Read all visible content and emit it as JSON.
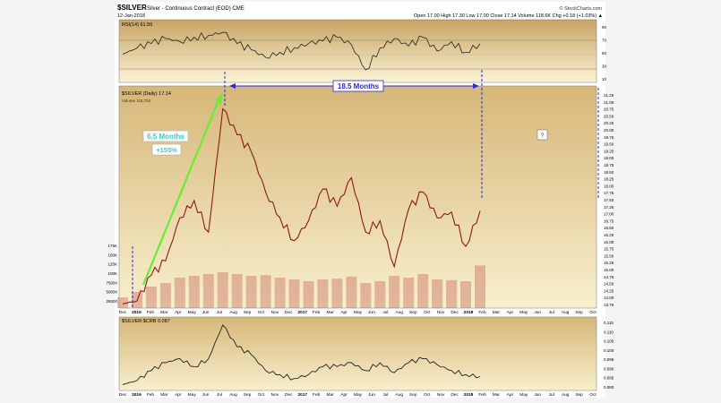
{
  "header": {
    "symbol": "$SILVER",
    "description": "Silver - Continuous Contract (EOD) CME",
    "date": "12-Jan-2018",
    "stats": "Open 17.00  High 17.30  Low 17.00  Close 17.14  Volume 118.6K  Chg +0.18 (+1.03%) ▲",
    "credit": "© StockCharts.com"
  },
  "rsi_panel": {
    "label": "RSI(14) 61.59",
    "y_ticks": [
      "90",
      "70",
      "50",
      "30",
      "10"
    ]
  },
  "price_panel": {
    "label": "$SILVER (Daily) 17.14",
    "volume_label": "Volume 118,752",
    "y_ticks": [
      "21.25",
      "21.00",
      "20.75",
      "20.50",
      "20.25",
      "20.00",
      "19.75",
      "19.50",
      "19.25",
      "19.00",
      "18.75",
      "18.50",
      "18.25",
      "18.00",
      "17.75",
      "17.50",
      "17.25",
      "17.00",
      "16.75",
      "16.50",
      "16.25",
      "16.00",
      "15.75",
      "15.50",
      "15.25",
      "15.00",
      "14.75",
      "14.50",
      "14.25",
      "14.00",
      "13.75"
    ],
    "volume_ticks": [
      "175K",
      "150K",
      "125K",
      "100K",
      "75000",
      "50000",
      "25000"
    ]
  },
  "ratio_panel": {
    "label": "$SILVER:$CRB 0.087",
    "y_ticks": [
      "0.115",
      "0.110",
      "0.105",
      "0.100",
      "0.095",
      "0.090",
      "0.085",
      "0.080"
    ]
  },
  "x_axis": {
    "labels": [
      "Dec",
      "2016",
      "Feb",
      "Mar",
      "Apr",
      "May",
      "Jun",
      "Jul",
      "Aug",
      "Sep",
      "Oct",
      "Nov",
      "Dec",
      "2017",
      "Feb",
      "Mar",
      "Apr",
      "May",
      "Jun",
      "Jul",
      "Aug",
      "Sep",
      "Oct",
      "Nov",
      "Dec",
      "2018",
      "Feb",
      "Mar",
      "Apr",
      "May",
      "Jun",
      "Jul",
      "Aug",
      "Sep",
      "Oct"
    ]
  },
  "annotations": {
    "months_18": "18.5 Months",
    "months_6": "6.5 Months",
    "percent": "+155%",
    "question": "?"
  },
  "colors": {
    "bg_top": "#c8a463",
    "bg_bottom": "#faf3d6",
    "candle": "#8b1a1a",
    "green_arrow": "#66ee33",
    "blue_annot": "#2a2ad0",
    "label_teal": "#33cccc"
  },
  "chart_data": [
    {
      "type": "line",
      "panel": "rsi",
      "ylim": [
        0,
        100
      ],
      "x": [
        "Dec",
        "2016",
        "Feb",
        "Mar",
        "Apr",
        "May",
        "Jun",
        "Jul",
        "Aug",
        "Sep",
        "Oct",
        "Nov",
        "Dec",
        "2017",
        "Feb",
        "Mar",
        "Apr",
        "May",
        "Jun",
        "Jul",
        "Aug",
        "Sep",
        "Oct",
        "Nov",
        "Dec",
        "2018"
      ],
      "series": [
        {
          "values": [
            45,
            55,
            62,
            70,
            65,
            72,
            75,
            80,
            62,
            52,
            40,
            48,
            55,
            62,
            66,
            72,
            60,
            20,
            55,
            70,
            58,
            72,
            50,
            65,
            48,
            61.59
          ]
        }
      ]
    },
    {
      "type": "line",
      "panel": "price",
      "ylim": [
        13.75,
        21.25
      ],
      "x": [
        "Dec",
        "2016",
        "Feb",
        "Mar",
        "Apr",
        "May",
        "Jun",
        "Jul",
        "Aug",
        "Sep",
        "Oct",
        "Nov",
        "Dec",
        "2017",
        "Feb",
        "Mar",
        "Apr",
        "May",
        "Jun",
        "Jul",
        "Aug",
        "Sep",
        "Oct",
        "Nov",
        "Dec",
        "2018"
      ],
      "series": [
        {
          "values": [
            13.9,
            14.0,
            14.9,
            15.4,
            16.9,
            17.5,
            16.4,
            20.7,
            19.8,
            19.2,
            17.8,
            16.9,
            16.1,
            16.8,
            17.9,
            17.3,
            18.3,
            16.4,
            16.8,
            15.2,
            17.2,
            17.8,
            16.9,
            17.1,
            15.9,
            17.14
          ]
        }
      ]
    },
    {
      "type": "bar",
      "panel": "volume",
      "ylim": [
        0,
        175000
      ],
      "values": [
        30000,
        45000,
        60000,
        70000,
        85000,
        90000,
        95000,
        100000,
        95000,
        90000,
        92000,
        85000,
        80000,
        75000,
        80000,
        82000,
        88000,
        70000,
        75000,
        90000,
        85000,
        95000,
        80000,
        78000,
        75000,
        118752
      ]
    },
    {
      "type": "line",
      "panel": "ratio",
      "ylim": [
        0.08,
        0.117
      ],
      "x": [
        "Dec",
        "2016",
        "Feb",
        "Mar",
        "Apr",
        "May",
        "Jun",
        "Jul",
        "Aug",
        "Sep",
        "Oct",
        "Nov",
        "Dec",
        "2017",
        "Feb",
        "Mar",
        "Apr",
        "May",
        "Jun",
        "Jul",
        "Aug",
        "Sep",
        "Oct",
        "Nov",
        "Dec",
        "2018"
      ],
      "series": [
        {
          "values": [
            0.083,
            0.085,
            0.09,
            0.094,
            0.096,
            0.092,
            0.096,
            0.113,
            0.102,
            0.098,
            0.09,
            0.088,
            0.086,
            0.088,
            0.092,
            0.092,
            0.094,
            0.09,
            0.094,
            0.089,
            0.094,
            0.096,
            0.093,
            0.09,
            0.088,
            0.087
          ]
        }
      ]
    }
  ]
}
